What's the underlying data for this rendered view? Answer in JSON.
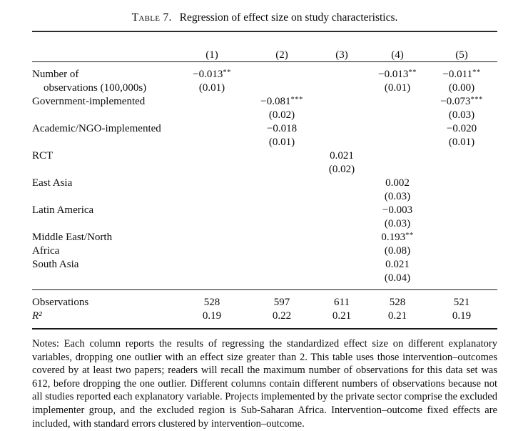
{
  "title": {
    "tag": "Table 7.",
    "caption": "Regression of effect size on study characteristics."
  },
  "table": {
    "column_headers": [
      "(1)",
      "(2)",
      "(3)",
      "(4)",
      "(5)"
    ],
    "body_rows": [
      {
        "label": "Number of",
        "cells": [
          "−0.013**",
          "",
          "",
          "−0.013**",
          "−0.011**"
        ]
      },
      {
        "label": "observations (100,000s)",
        "indent": true,
        "cells": [
          "(0.01)",
          "",
          "",
          "(0.01)",
          "(0.00)"
        ]
      },
      {
        "label": "Government-implemented",
        "cells": [
          "",
          "−0.081***",
          "",
          "",
          "−0.073***"
        ]
      },
      {
        "label": "",
        "cells": [
          "",
          "(0.02)",
          "",
          "",
          "(0.03)"
        ]
      },
      {
        "label": "Academic/NGO-implemented",
        "cells": [
          "",
          "−0.018",
          "",
          "",
          "−0.020"
        ]
      },
      {
        "label": "",
        "cells": [
          "",
          "(0.01)",
          "",
          "",
          "(0.01)"
        ]
      },
      {
        "label": "RCT",
        "cells": [
          "",
          "",
          "0.021",
          "",
          ""
        ]
      },
      {
        "label": "",
        "cells": [
          "",
          "",
          "(0.02)",
          "",
          ""
        ]
      },
      {
        "label": "East Asia",
        "cells": [
          "",
          "",
          "",
          "0.002",
          ""
        ]
      },
      {
        "label": "",
        "cells": [
          "",
          "",
          "",
          "(0.03)",
          ""
        ]
      },
      {
        "label": "Latin America",
        "cells": [
          "",
          "",
          "",
          "−0.003",
          ""
        ]
      },
      {
        "label": "",
        "cells": [
          "",
          "",
          "",
          "(0.03)",
          ""
        ]
      },
      {
        "label": "Middle East/North",
        "cells": [
          "",
          "",
          "",
          "0.193**",
          ""
        ]
      },
      {
        "label": "Africa",
        "cells": [
          "",
          "",
          "",
          "(0.08)",
          ""
        ]
      },
      {
        "label": "South Asia",
        "cells": [
          "",
          "",
          "",
          "0.021",
          ""
        ]
      },
      {
        "label": "",
        "cells": [
          "",
          "",
          "",
          "(0.04)",
          ""
        ]
      }
    ],
    "stats_rows": [
      {
        "label": "Observations",
        "cells": [
          "528",
          "597",
          "611",
          "528",
          "521"
        ]
      },
      {
        "label": "R²",
        "italic": true,
        "cells": [
          "0.19",
          "0.22",
          "0.21",
          "0.21",
          "0.19"
        ]
      }
    ]
  },
  "notes": "Notes: Each column reports the results of regressing the standardized effect size on different explanatory variables, dropping one outlier with an effect size greater than 2. This table uses those intervention–outcomes covered by at least two papers; readers will recall the maximum number of observations for this data set was 612, before dropping the one outlier. Different columns contain different numbers of observations because not all studies reported each explanatory variable. Projects implemented by the private sector comprise the excluded implementer group, and the excluded region is Sub-Saharan Africa. Intervention–outcome fixed effects are included, with standard errors clustered by intervention–outcome."
}
